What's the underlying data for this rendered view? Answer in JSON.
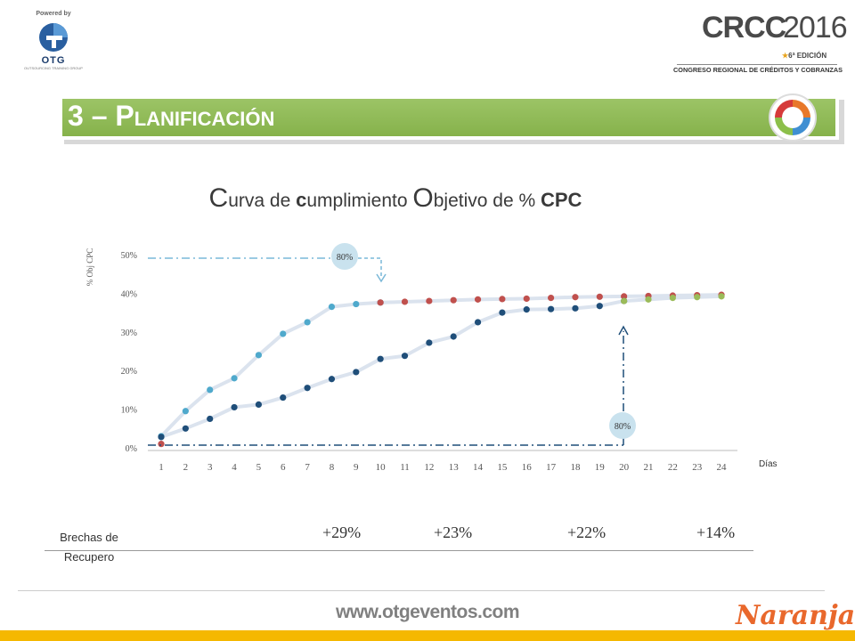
{
  "header": {
    "powered_by": "Powered by",
    "otg_name": "OTG",
    "otg_sub": "OUTSOURCING TRAINING GROUP",
    "crcc_title": "CRCC",
    "crcc_year": "2016",
    "crcc_edition": "6ª EDICIÓN",
    "crcc_subtitle": "CONGRESO REGIONAL DE CRÉDITOS Y COBRANZAS"
  },
  "banner": {
    "title": "3 – Planificación"
  },
  "title": {
    "c1": "C",
    "p1": "urva de ",
    "c2": "c",
    "p2": "umplimiento ",
    "c3": "O",
    "p3": "bjetivo de ",
    "pct": "% ",
    "cpc": "CPC"
  },
  "chart_data": {
    "type": "line",
    "ylabel": "% Obj CPC",
    "xlabel": "Días",
    "ylim": [
      0,
      50
    ],
    "yticks": [
      "0%",
      "10%",
      "20%",
      "30%",
      "40%",
      "50%"
    ],
    "categories": [
      "1",
      "2",
      "3",
      "4",
      "5",
      "6",
      "7",
      "8",
      "9",
      "10",
      "11",
      "12",
      "13",
      "14",
      "15",
      "16",
      "17",
      "18",
      "19",
      "20",
      "21",
      "22",
      "23",
      "24"
    ],
    "grid": false,
    "series": [
      {
        "color": "#4fa9cc",
        "values": [
          3,
          9.5,
          15,
          18,
          24,
          29.5,
          32.5,
          36.5,
          37.2,
          37.6,
          null,
          null,
          null,
          null,
          null,
          null,
          null,
          null,
          null,
          null,
          null,
          null,
          null,
          null
        ]
      },
      {
        "color": "#c0504d",
        "values": [
          null,
          null,
          null,
          null,
          null,
          null,
          null,
          null,
          null,
          37.6,
          37.8,
          38,
          38.2,
          38.4,
          38.5,
          38.6,
          38.8,
          39,
          39.1,
          39.2,
          39.3,
          39.4,
          39.5,
          39.6
        ]
      },
      {
        "color": "#1f4e79",
        "values": [
          2.8,
          5,
          7.5,
          10.5,
          11.2,
          13,
          15.5,
          17.8,
          19.6,
          23,
          23.8,
          27.2,
          28.8,
          32.5,
          35,
          35.8,
          35.9,
          36.1,
          36.7,
          38,
          null,
          null,
          null,
          null
        ]
      },
      {
        "color": "#9bbb59",
        "values": [
          null,
          null,
          null,
          null,
          null,
          null,
          null,
          null,
          null,
          null,
          null,
          null,
          null,
          null,
          null,
          null,
          null,
          null,
          null,
          38,
          38.4,
          38.8,
          39,
          39.2
        ]
      },
      {
        "color": "#c0504d",
        "values": [
          1,
          null,
          null,
          null,
          null,
          null,
          null,
          null,
          null,
          null,
          null,
          null,
          null,
          null,
          null,
          null,
          null,
          null,
          null,
          null,
          null,
          null,
          null,
          null
        ]
      }
    ],
    "annotations": [
      {
        "text": "80%"
      },
      {
        "text": "80%"
      }
    ]
  },
  "brechas": {
    "label_line1": "Brechas de",
    "label_line2": "Recupero",
    "values": [
      "+29%",
      "+23%",
      "+22%",
      "+14%"
    ]
  },
  "footer": {
    "url": "www.otgeventos.com",
    "brand": "Naranja"
  }
}
